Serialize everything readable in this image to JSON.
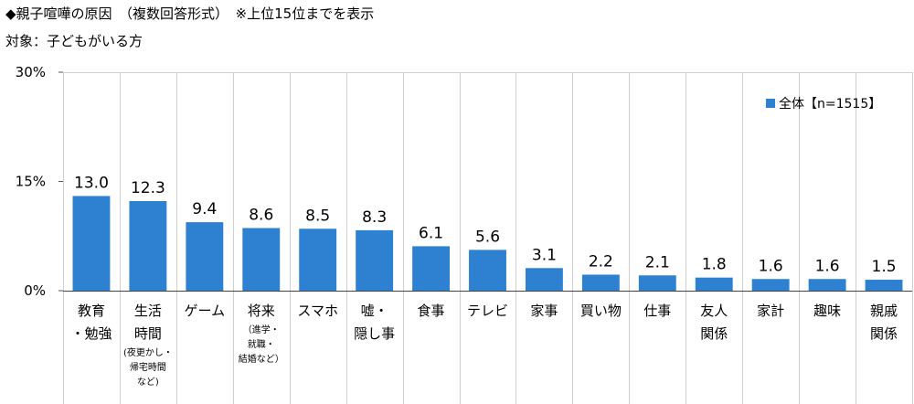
{
  "header": {
    "title": "◆親子喧嘩の原因　（複数回答形式）　※上位15位までを表示",
    "subtitle": "対象：子どもがいる方"
  },
  "chart_data": {
    "type": "bar",
    "ylim": [
      0,
      30
    ],
    "yticks": [
      {
        "value": 0,
        "label": "0%"
      },
      {
        "value": 15,
        "label": "15%"
      },
      {
        "value": 30,
        "label": "30%"
      }
    ],
    "grid": "vertical separators only",
    "legend_position": "top-right",
    "bar_color": "#2E80D0",
    "series": [
      {
        "name": "全体【n=1515】",
        "values": [
          13.0,
          12.3,
          9.4,
          8.6,
          8.5,
          8.3,
          6.1,
          5.6,
          3.1,
          2.2,
          2.1,
          1.8,
          1.6,
          1.6,
          1.5
        ]
      }
    ],
    "value_labels": [
      "13.0",
      "12.3",
      "9.4",
      "8.6",
      "8.5",
      "8.3",
      "6.1",
      "5.6",
      "3.1",
      "2.2",
      "2.1",
      "1.8",
      "1.6",
      "1.6",
      "1.5"
    ],
    "categories": [
      {
        "lines": [
          "教育",
          "・勉強"
        ],
        "sub": []
      },
      {
        "lines": [
          "生活",
          "時間"
        ],
        "sub": [
          "(夜更かし・",
          "帰宅時間",
          "など)"
        ]
      },
      {
        "lines": [
          "ゲーム"
        ],
        "sub": []
      },
      {
        "lines": [
          "将来"
        ],
        "sub": [
          "（進学・",
          "就職・",
          "結婚など）"
        ]
      },
      {
        "lines": [
          "スマホ"
        ],
        "sub": []
      },
      {
        "lines": [
          "嘘・",
          "隠し事"
        ],
        "sub": []
      },
      {
        "lines": [
          "食事"
        ],
        "sub": []
      },
      {
        "lines": [
          "テレビ"
        ],
        "sub": []
      },
      {
        "lines": [
          "家事"
        ],
        "sub": []
      },
      {
        "lines": [
          "買い物"
        ],
        "sub": []
      },
      {
        "lines": [
          "仕事"
        ],
        "sub": []
      },
      {
        "lines": [
          "友人",
          "関係"
        ],
        "sub": []
      },
      {
        "lines": [
          "家計"
        ],
        "sub": []
      },
      {
        "lines": [
          "趣味"
        ],
        "sub": []
      },
      {
        "lines": [
          "親戚",
          "関係"
        ],
        "sub": []
      }
    ]
  }
}
